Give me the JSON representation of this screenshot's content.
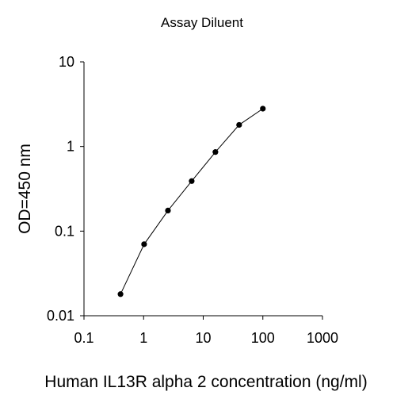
{
  "chart_data": {
    "type": "line",
    "title": "Assay Diluent",
    "xlabel": "Human IL13R alpha 2 concentration (ng/ml)",
    "ylabel": "OD=450 nm",
    "xscale": "log",
    "yscale": "log",
    "xlim": [
      0.1,
      1000
    ],
    "ylim": [
      0.01,
      10
    ],
    "xticks": [
      "0.1",
      "1",
      "10",
      "100",
      "1000"
    ],
    "yticks": [
      "0.01",
      "0.1",
      "1",
      "10"
    ],
    "grid": false,
    "legend": "none",
    "series": [
      {
        "color": "#000000",
        "marker": "circle",
        "x": [
          0.41,
          1.02,
          2.56,
          6.4,
          16,
          40,
          100
        ],
        "y": [
          0.018,
          0.07,
          0.175,
          0.39,
          0.86,
          1.8,
          2.8
        ]
      }
    ]
  }
}
